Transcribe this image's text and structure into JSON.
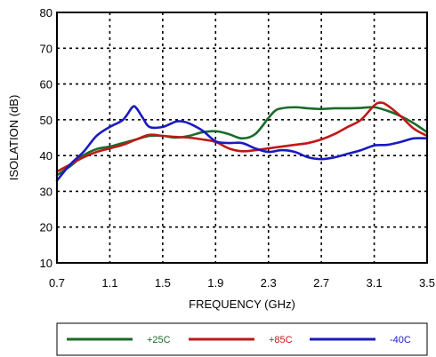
{
  "chart_data": {
    "type": "line",
    "title": "",
    "xlabel": "FREQUENCY (GHz)",
    "ylabel": "ISOLATION (dB)",
    "xlim": [
      0.7,
      3.5
    ],
    "ylim": [
      10,
      80
    ],
    "grid": true,
    "x_ticks": [
      "0.7",
      "1.1",
      "1.5",
      "1.9",
      "2.3",
      "2.7",
      "3.1",
      "3.5"
    ],
    "y_ticks": [
      "10",
      "20",
      "30",
      "40",
      "50",
      "60",
      "70",
      "80"
    ],
    "legend_position": "bottom",
    "series": [
      {
        "name": "+25C",
        "color": "#1a6b2a",
        "x": [
          0.7,
          0.8,
          0.9,
          1.0,
          1.1,
          1.2,
          1.3,
          1.4,
          1.5,
          1.6,
          1.7,
          1.8,
          1.9,
          2.0,
          2.1,
          2.2,
          2.3,
          2.35,
          2.4,
          2.5,
          2.6,
          2.7,
          2.8,
          2.9,
          3.0,
          3.1,
          3.2,
          3.3,
          3.4,
          3.5
        ],
        "y": [
          34.5,
          37.0,
          40.0,
          41.8,
          42.5,
          43.5,
          44.5,
          45.5,
          45.5,
          45.0,
          45.5,
          46.5,
          46.8,
          46.0,
          44.8,
          46.0,
          50.5,
          52.5,
          53.2,
          53.5,
          53.2,
          53.0,
          53.2,
          53.2,
          53.3,
          53.5,
          52.5,
          51.0,
          49.0,
          46.5
        ]
      },
      {
        "name": "+85C",
        "color": "#c01818",
        "x": [
          0.7,
          0.8,
          0.9,
          1.0,
          1.1,
          1.2,
          1.3,
          1.4,
          1.5,
          1.6,
          1.7,
          1.8,
          1.9,
          2.0,
          2.1,
          2.2,
          2.3,
          2.4,
          2.5,
          2.6,
          2.7,
          2.8,
          2.9,
          3.0,
          3.1,
          3.15,
          3.2,
          3.3,
          3.4,
          3.5
        ],
        "y": [
          35.5,
          37.5,
          39.5,
          41.0,
          42.0,
          43.0,
          44.5,
          45.8,
          45.5,
          45.2,
          45.0,
          44.5,
          43.8,
          42.0,
          41.2,
          41.5,
          42.0,
          42.5,
          43.0,
          43.5,
          44.5,
          46.0,
          48.0,
          50.0,
          54.0,
          54.8,
          54.0,
          51.0,
          47.5,
          45.5
        ]
      },
      {
        "name": "-40C",
        "color": "#1a1ac0",
        "x": [
          0.7,
          0.8,
          0.9,
          1.0,
          1.1,
          1.2,
          1.27,
          1.3,
          1.35,
          1.4,
          1.5,
          1.6,
          1.65,
          1.7,
          1.8,
          1.9,
          2.0,
          2.1,
          2.2,
          2.3,
          2.4,
          2.5,
          2.6,
          2.7,
          2.8,
          2.9,
          3.0,
          3.1,
          3.2,
          3.3,
          3.4,
          3.5
        ],
        "y": [
          33.0,
          37.5,
          41.0,
          45.5,
          48.0,
          50.0,
          53.5,
          53.3,
          50.5,
          48.0,
          48.0,
          49.5,
          49.5,
          49.0,
          47.0,
          44.0,
          43.5,
          43.5,
          42.0,
          41.0,
          41.5,
          41.0,
          39.5,
          39.0,
          39.5,
          40.5,
          41.5,
          42.8,
          43.0,
          43.8,
          44.8,
          44.8
        ]
      }
    ]
  }
}
